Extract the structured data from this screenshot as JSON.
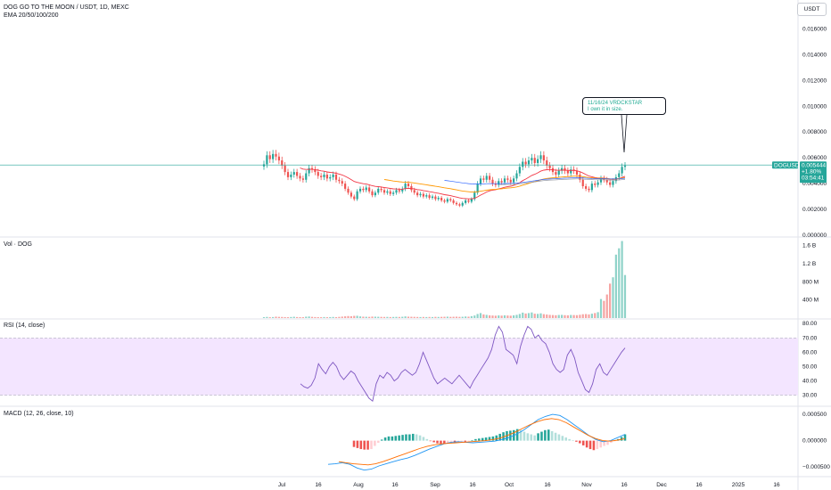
{
  "header": {
    "symbol_line": "DOG GO TO THE MOON / USDT, 1D, MEXC",
    "indicator_line": "EMA 20/50/100/200"
  },
  "currency_button": "USDT",
  "callout": {
    "line1": "11/16/24 VRDCKSTAR",
    "line2": "I own it in size."
  },
  "price_badge": {
    "ticker": "DOGUSDT",
    "price": "0.005444",
    "change": "+1.80%",
    "countdown": "03:54:41"
  },
  "panes": {
    "volume_label": "Vol · DOG",
    "rsi_label": "RSI (14, close)",
    "macd_label": "MACD (12, 26, close, 10)"
  },
  "colors": {
    "up": "#26a69a",
    "down": "#ef5350",
    "ema_red": "#f23645",
    "ema_orange": "#ff9800",
    "ema_blue": "#2962ff",
    "ema_gray": "#9598a1",
    "rsi_line": "#7e57c2",
    "rsi_band": "#f3e5ff",
    "macd_line": "#2196f3",
    "signal_line": "#ff6d00",
    "last_price_line": "#26a69a"
  },
  "chart_data": [
    {
      "type": "candlestick",
      "title": "DOG GO TO THE MOON / USDT, 1D, MEXC",
      "y_ticks": [
        "0.016000",
        "0.014000",
        "0.012000",
        "0.010000",
        "0.008000",
        "0.006000",
        "0.004000",
        "0.002000",
        "0.000000"
      ],
      "ylim": [
        0,
        0.017
      ],
      "x_ticks": [
        "Jul",
        "16",
        "Aug",
        "16",
        "Sep",
        "16",
        "Oct",
        "16",
        "Nov",
        "16",
        "Dec",
        "16",
        "2025",
        "16"
      ],
      "last_price": 0.005444,
      "closes": [
        0.0055,
        0.0062,
        0.0059,
        0.0063,
        0.0061,
        0.0058,
        0.0054,
        0.0049,
        0.0045,
        0.0047,
        0.0049,
        0.0046,
        0.0044,
        0.0043,
        0.0048,
        0.0052,
        0.0051,
        0.0049,
        0.0046,
        0.0045,
        0.0047,
        0.0044,
        0.0045,
        0.0047,
        0.0043,
        0.0042,
        0.004,
        0.0036,
        0.0033,
        0.003,
        0.0028,
        0.0034,
        0.0036,
        0.0035,
        0.0037,
        0.0034,
        0.0031,
        0.0033,
        0.0036,
        0.0035,
        0.0033,
        0.0034,
        0.0032,
        0.0033,
        0.0035,
        0.0034,
        0.0036,
        0.004,
        0.0038,
        0.0035,
        0.0033,
        0.0031,
        0.0032,
        0.003,
        0.0031,
        0.0029,
        0.003,
        0.0028,
        0.0029,
        0.0027,
        0.0026,
        0.0028,
        0.0027,
        0.0025,
        0.0024,
        0.0023,
        0.0025,
        0.0027,
        0.0026,
        0.0028,
        0.0033,
        0.004,
        0.0044,
        0.0043,
        0.0046,
        0.0043,
        0.004,
        0.0039,
        0.0042,
        0.0041,
        0.0044,
        0.0043,
        0.0041,
        0.0044,
        0.0048,
        0.0053,
        0.0057,
        0.0055,
        0.0058,
        0.006,
        0.0056,
        0.0059,
        0.0062,
        0.0058,
        0.0054,
        0.0052,
        0.0049,
        0.0047,
        0.005,
        0.0052,
        0.005,
        0.0048,
        0.0051,
        0.005,
        0.0047,
        0.0043,
        0.0038,
        0.0036,
        0.0035,
        0.004,
        0.0039,
        0.0041,
        0.0044,
        0.0043,
        0.0041,
        0.0039,
        0.0042,
        0.0045,
        0.0048,
        0.0053,
        0.0054
      ]
    },
    {
      "type": "bar",
      "title": "Vol · DOG",
      "y_ticks": [
        "1.6 B",
        "1.2 B",
        "800 M",
        "400 M"
      ],
      "ylim": [
        0,
        1750000000
      ],
      "values_note_units": "tokens",
      "values": [
        20,
        25,
        18,
        22,
        30,
        26,
        24,
        21,
        19,
        23,
        28,
        22,
        20,
        19,
        30,
        34,
        26,
        22,
        20,
        18,
        22,
        19,
        21,
        24,
        20,
        26,
        32,
        38,
        44,
        40,
        48,
        50,
        36,
        30,
        28,
        26,
        32,
        30,
        28,
        26,
        24,
        25,
        22,
        24,
        26,
        24,
        28,
        36,
        30,
        28,
        26,
        24,
        22,
        24,
        22,
        24,
        22,
        26,
        24,
        26,
        28,
        30,
        26,
        28,
        30,
        26,
        28,
        34,
        30,
        42,
        56,
        90,
        110,
        80,
        70,
        60,
        56,
        52,
        58,
        54,
        60,
        56,
        52,
        60,
        70,
        90,
        120,
        100,
        110,
        124,
        96,
        92,
        104,
        86,
        78,
        70,
        66,
        62,
        68,
        70,
        64,
        60,
        68,
        66,
        64,
        72,
        84,
        88,
        80,
        96,
        110,
        130,
        420,
        380,
        520,
        760,
        900,
        1400,
        1540,
        1700,
        950
      ]
    },
    {
      "type": "line",
      "title": "RSI (14, close)",
      "y_ticks": [
        "80.00",
        "70.00",
        "60.00",
        "50.00",
        "40.00",
        "30.00"
      ],
      "ylim": [
        23,
        82
      ],
      "band": [
        30,
        70
      ],
      "values": [
        38,
        36,
        35,
        37,
        42,
        52,
        48,
        45,
        50,
        53,
        50,
        44,
        41,
        44,
        47,
        45,
        40,
        36,
        32,
        28,
        26,
        38,
        44,
        42,
        46,
        44,
        40,
        42,
        46,
        48,
        46,
        44,
        46,
        52,
        60,
        54,
        48,
        42,
        38,
        40,
        42,
        40,
        38,
        41,
        44,
        41,
        38,
        35,
        40,
        44,
        48,
        52,
        56,
        62,
        72,
        78,
        74,
        62,
        60,
        58,
        52,
        64,
        72,
        78,
        76,
        70,
        72,
        68,
        66,
        60,
        52,
        48,
        46,
        48,
        58,
        62,
        56,
        46,
        40,
        34,
        32,
        38,
        48,
        52,
        46,
        44,
        48,
        52,
        56,
        60,
        63
      ]
    },
    {
      "type": "bar",
      "title": "MACD (12, 26, close, 10)",
      "y_ticks": [
        "0.000500",
        "0.000000",
        "−0.000500"
      ],
      "ylim": [
        -0.00065,
        0.00062
      ],
      "histogram": [
        -0.00012,
        -0.00014,
        -0.00016,
        -0.00017,
        -0.00017,
        -0.00016,
        -0.0001,
        -4e-05,
        2e-05,
        6e-05,
        8e-05,
        8e-05,
        9e-05,
        0.0001,
        0.00011,
        0.00012,
        0.00012,
        0.00013,
        0.00012,
        0.0001,
        7e-05,
        3e-05,
        -1e-05,
        -3e-05,
        -5e-05,
        -6e-05,
        -6e-05,
        -5e-05,
        -4e-05,
        -4e-05,
        -3e-05,
        -2e-05,
        -2e-05,
        -1e-05,
        1e-05,
        3e-05,
        4e-05,
        5e-05,
        6e-05,
        7e-05,
        8e-05,
        0.0001,
        0.00013,
        0.00016,
        0.00018,
        0.00019,
        0.0002,
        0.00022,
        0.0002,
        0.00017,
        0.00014,
        0.00012,
        0.0001,
        0.00014,
        0.00017,
        0.0002,
        0.00021,
        0.00018,
        0.00015,
        0.00012,
        9e-05,
        6e-05,
        3e-05,
        1e-05,
        -2e-05,
        -5e-05,
        -9e-05,
        -0.00013,
        -0.00016,
        -0.00018,
        -0.00016,
        -0.00013,
        -0.0001,
        -8e-05,
        -4e-05,
        -1e-05,
        3e-05,
        7e-05,
        0.00012
      ],
      "macd": [
        -0.00045,
        -0.00044,
        -0.00042,
        -0.00045,
        -0.00052,
        -0.00056,
        -0.00054,
        -0.00048,
        -0.00044,
        -0.0004,
        -0.00036,
        -0.00033,
        -0.00028,
        -0.00022,
        -0.00016,
        -0.00011,
        -6e-05,
        -3e-05,
        -2e-05,
        -3e-05,
        -4e-05,
        -3e-05,
        -2e-05,
        -1e-05,
        2e-05,
        6e-05,
        0.00012,
        0.0002,
        0.0003,
        0.0004,
        0.00046,
        0.0005,
        0.00048,
        0.0004,
        0.0003,
        0.0002,
        0.0001,
        2e-05,
        -2e-05,
        0.0,
        6e-05,
        0.00012
      ],
      "signal": [
        -0.0004,
        -0.00042,
        -0.00044,
        -0.00045,
        -0.00046,
        -0.00044,
        -0.0004,
        -0.00035,
        -0.0003,
        -0.00025,
        -0.0002,
        -0.00015,
        -0.00011,
        -8e-05,
        -6e-05,
        -5e-05,
        -4e-05,
        -3e-05,
        -2e-05,
        -1e-05,
        0.0,
        2e-05,
        5e-05,
        0.0001,
        0.00016,
        0.00023,
        0.0003,
        0.00036,
        0.0004,
        0.00042,
        0.0004,
        0.00034,
        0.00026,
        0.00018,
        0.0001,
        4e-05,
        0.0,
        -1e-05,
        1e-05,
        4e-05
      ]
    }
  ]
}
